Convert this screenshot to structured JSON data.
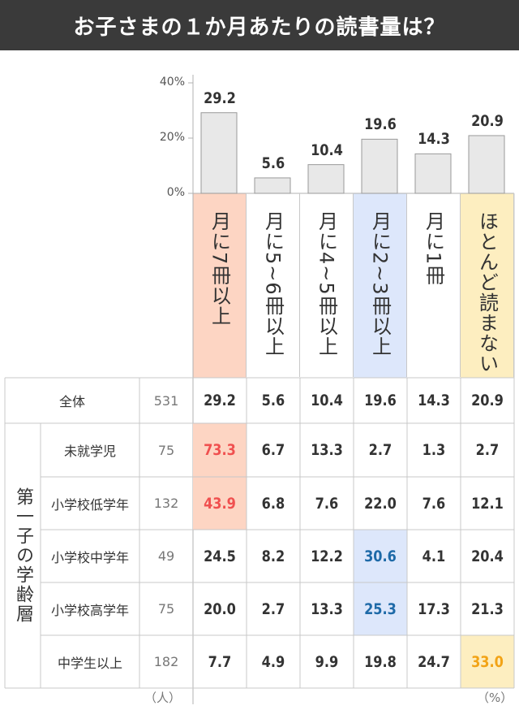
{
  "header": {
    "title": "お子さまの１か月あたりの読書量は？"
  },
  "chart_data": {
    "type": "bar",
    "categories": [
      "月に7冊以上",
      "月に5~6冊以上",
      "月に4~5冊以上",
      "月に2~3冊以上",
      "月に1冊",
      "ほとんど読まない"
    ],
    "values": [
      29.2,
      5.6,
      10.4,
      19.6,
      14.3,
      20.9
    ],
    "y_ticks": [
      "40%",
      "20%",
      "0%"
    ],
    "ylim": [
      0,
      40
    ],
    "category_highlight_colors": [
      "#fdd5c3",
      null,
      null,
      "#dde7fb",
      null,
      "#fdeec0"
    ],
    "bar_fill": "#e8e8e8",
    "bar_stroke": "#9a9a9a"
  },
  "table": {
    "group_label": "第一子の学齢層",
    "rows": [
      {
        "label": "全体",
        "n": "531",
        "values": [
          "29.2",
          "5.6",
          "10.4",
          "19.6",
          "14.3",
          "20.9"
        ],
        "highlights": []
      },
      {
        "label": "未就学児",
        "n": "75",
        "values": [
          "73.3",
          "6.7",
          "13.3",
          "2.7",
          "1.3",
          "2.7"
        ],
        "highlights": [
          0
        ]
      },
      {
        "label": "小学校低学年",
        "n": "132",
        "values": [
          "43.9",
          "6.8",
          "7.6",
          "22.0",
          "7.6",
          "12.1"
        ],
        "highlights": [
          0
        ]
      },
      {
        "label": "小学校中学年",
        "n": "49",
        "values": [
          "24.5",
          "8.2",
          "12.2",
          "30.6",
          "4.1",
          "20.4"
        ],
        "highlights": [
          3
        ]
      },
      {
        "label": "小学校高学年",
        "n": "75",
        "values": [
          "20.0",
          "2.7",
          "13.3",
          "25.3",
          "17.3",
          "21.3"
        ],
        "highlights": [
          3
        ]
      },
      {
        "label": "中学生以上",
        "n": "182",
        "values": [
          "7.7",
          "4.9",
          "9.9",
          "19.8",
          "24.7",
          "33.0"
        ],
        "highlights": [
          5
        ]
      }
    ],
    "highlight_bg": [
      "#fdd5c3",
      null,
      null,
      "#dde7fb",
      null,
      "#fdeec0"
    ],
    "highlight_text": [
      "#f0504f",
      null,
      null,
      "#1e6aa8",
      null,
      "#f2a316"
    ],
    "unit_n": "（人）",
    "unit_pct": "（%）"
  }
}
